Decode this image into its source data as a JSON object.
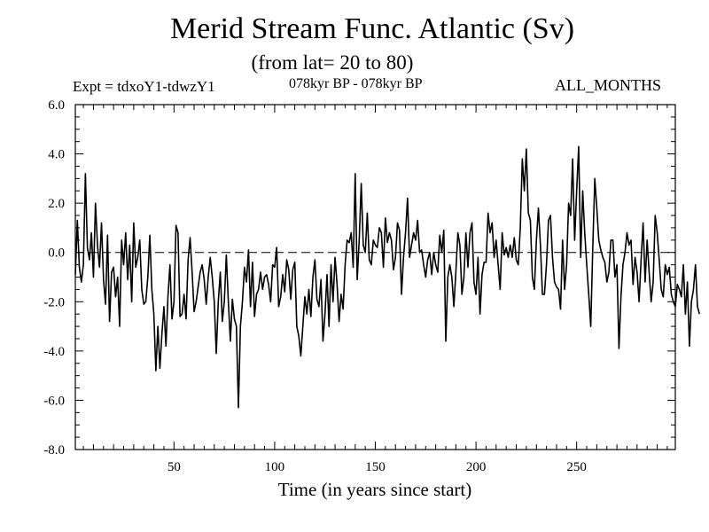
{
  "chart_data": {
    "type": "line",
    "title": "Merid Stream Func. Atlantic (Sv)",
    "subtitle": "(from lat= 20 to 80)",
    "annotations": {
      "experiment": "Expt = tdxoY1-tdwzY1",
      "period": "078kyr BP - 078kyr BP",
      "months": "ALL_MONTHS"
    },
    "xlabel": "Time (in years since start)",
    "ylabel": "",
    "xlim": [
      1,
      299
    ],
    "ylim": [
      -8.0,
      6.0
    ],
    "xticks": [
      50,
      100,
      150,
      200,
      250
    ],
    "xtick_labels": [
      "50",
      "100",
      "150",
      "200",
      "250"
    ],
    "yticks": [
      -8.0,
      -6.0,
      -4.0,
      -2.0,
      0.0,
      2.0,
      4.0,
      6.0
    ],
    "ytick_labels": [
      "-8.0",
      "-6.0",
      "-4.0",
      "-2.0",
      "0.0",
      "2.0",
      "4.0",
      "6.0"
    ],
    "zero_line": "dashed",
    "grid": false,
    "series": [
      {
        "x_start": 1,
        "x_step": 1,
        "values": [
          -0.9,
          1.3,
          -0.6,
          -1.2,
          -0.5,
          3.2,
          0.2,
          -0.3,
          0.8,
          -1.0,
          2.0,
          0.3,
          -0.6,
          1.2,
          -1.1,
          -2.1,
          0.7,
          -2.8,
          -0.8,
          -0.6,
          -1.8,
          -1.0,
          -3.0,
          0.5,
          -0.5,
          0.8,
          -1.1,
          0.3,
          -2.0,
          1.2,
          -0.6,
          -0.2,
          0.5,
          -1.5,
          -2.1,
          -2.0,
          -1.0,
          0.7,
          -1.5,
          -2.5,
          -4.8,
          -3.0,
          -4.7,
          -3.3,
          -2.2,
          -3.8,
          -1.8,
          -0.5,
          -2.7,
          -2.0,
          1.1,
          0.8,
          -2.6,
          -2.5,
          -1.7,
          -2.7,
          -0.3,
          0.6,
          -0.8,
          -2.4,
          -2.0,
          -1.4,
          -0.8,
          -0.5,
          -1.1,
          -2.1,
          -1.0,
          -0.2,
          -1.0,
          -2.0,
          -4.1,
          -2.0,
          -0.8,
          -2.8,
          -2.0,
          -0.1,
          -2.0,
          -3.6,
          -1.9,
          -2.7,
          -3.0,
          -6.3,
          -3.0,
          -2.0,
          -0.6,
          -1.2,
          0.1,
          -2.2,
          -0.4,
          -2.6,
          -1.7,
          -1.5,
          -0.8,
          -1.5,
          -1.0,
          -0.9,
          -1.3,
          -2.0,
          -0.5,
          -0.6,
          0.2,
          -2.2,
          -1.8,
          -0.9,
          -1.6,
          -0.3,
          -0.7,
          -1.9,
          -0.7,
          -0.4,
          -3.0,
          -3.4,
          -4.2,
          -3.0,
          -1.8,
          -2.5,
          -1.5,
          -2.6,
          -1.0,
          -0.3,
          -1.9,
          -2.2,
          -1.1,
          -3.6,
          -2.5,
          -0.9,
          -3.0,
          -0.5,
          -2.0,
          -0.2,
          -1.3,
          -2.8,
          -1.7,
          -2.3,
          -0.5,
          0.5,
          0.4,
          0.8,
          -0.6,
          3.2,
          -1.1,
          0.5,
          2.8,
          0.3,
          0.0,
          1.6,
          -0.3,
          -0.5,
          0.5,
          0.3,
          0.2,
          1.0,
          0.8,
          -0.6,
          1.4,
          0.4,
          0.8,
          0.5,
          -0.7,
          -0.2,
          1.2,
          0.9,
          -1.7,
          -0.2,
          0.8,
          2.2,
          -0.2,
          0.3,
          0.8,
          0.5,
          1.3,
          0.0,
          0.1,
          -0.5,
          -1.0,
          -0.3,
          0.0,
          -0.9,
          0.0,
          -0.5,
          -0.8,
          0.7,
          0.0,
          0.9,
          -3.6,
          -1.0,
          -0.5,
          -1.0,
          -2.2,
          -0.8,
          0.8,
          0.3,
          -1.7,
          -1.0,
          0.8,
          -0.6,
          0.8,
          1.2,
          -1.2,
          -1.7,
          -0.2,
          -2.5,
          -0.9,
          -0.4,
          -0.4,
          1.6,
          0.8,
          1.2,
          -0.2,
          0.5,
          -0.5,
          -1.5,
          0.8,
          -0.1,
          0.2,
          -0.2,
          0.3,
          -0.2,
          0.6,
          -0.3,
          -0.5,
          1.0,
          3.8,
          2.5,
          4.2,
          1.6,
          1.3,
          -1.0,
          -1.5,
          0.5,
          1.8,
          0.3,
          -1.7,
          -1.7,
          -0.5,
          1.3,
          1.5,
          -0.2,
          -1.2,
          -1.4,
          -1.5,
          -2.3,
          0.5,
          -1.5,
          -0.5,
          2.0,
          1.5,
          3.8,
          0.5,
          2.5,
          4.3,
          -0.2,
          2.5,
          0.8,
          -0.5,
          -1.7,
          -3.0,
          0.2,
          3.0,
          1.8,
          0.5,
          0.1,
          -0.2,
          -0.4,
          -1.2,
          -0.8,
          0.5,
          0.5,
          -1.0,
          -0.5,
          -3.9,
          -1.8,
          -0.5,
          0.0,
          0.8,
          0.3,
          0.5,
          -1.3,
          -0.2,
          -0.8,
          -2.0,
          -0.3,
          1.2,
          -1.2,
          0.5,
          -0.8,
          -2.0,
          -1.2,
          1.5,
          0.8,
          -0.3,
          -1.5,
          -1.8,
          -0.5,
          -0.9,
          -0.6,
          -1.7,
          -2.0,
          -2.2,
          -1.3,
          -1.5,
          -1.8,
          -0.5,
          -2.5,
          -1.2,
          -3.8,
          -2.0,
          -1.5,
          -0.5,
          -2.2,
          -2.5
        ]
      }
    ]
  }
}
